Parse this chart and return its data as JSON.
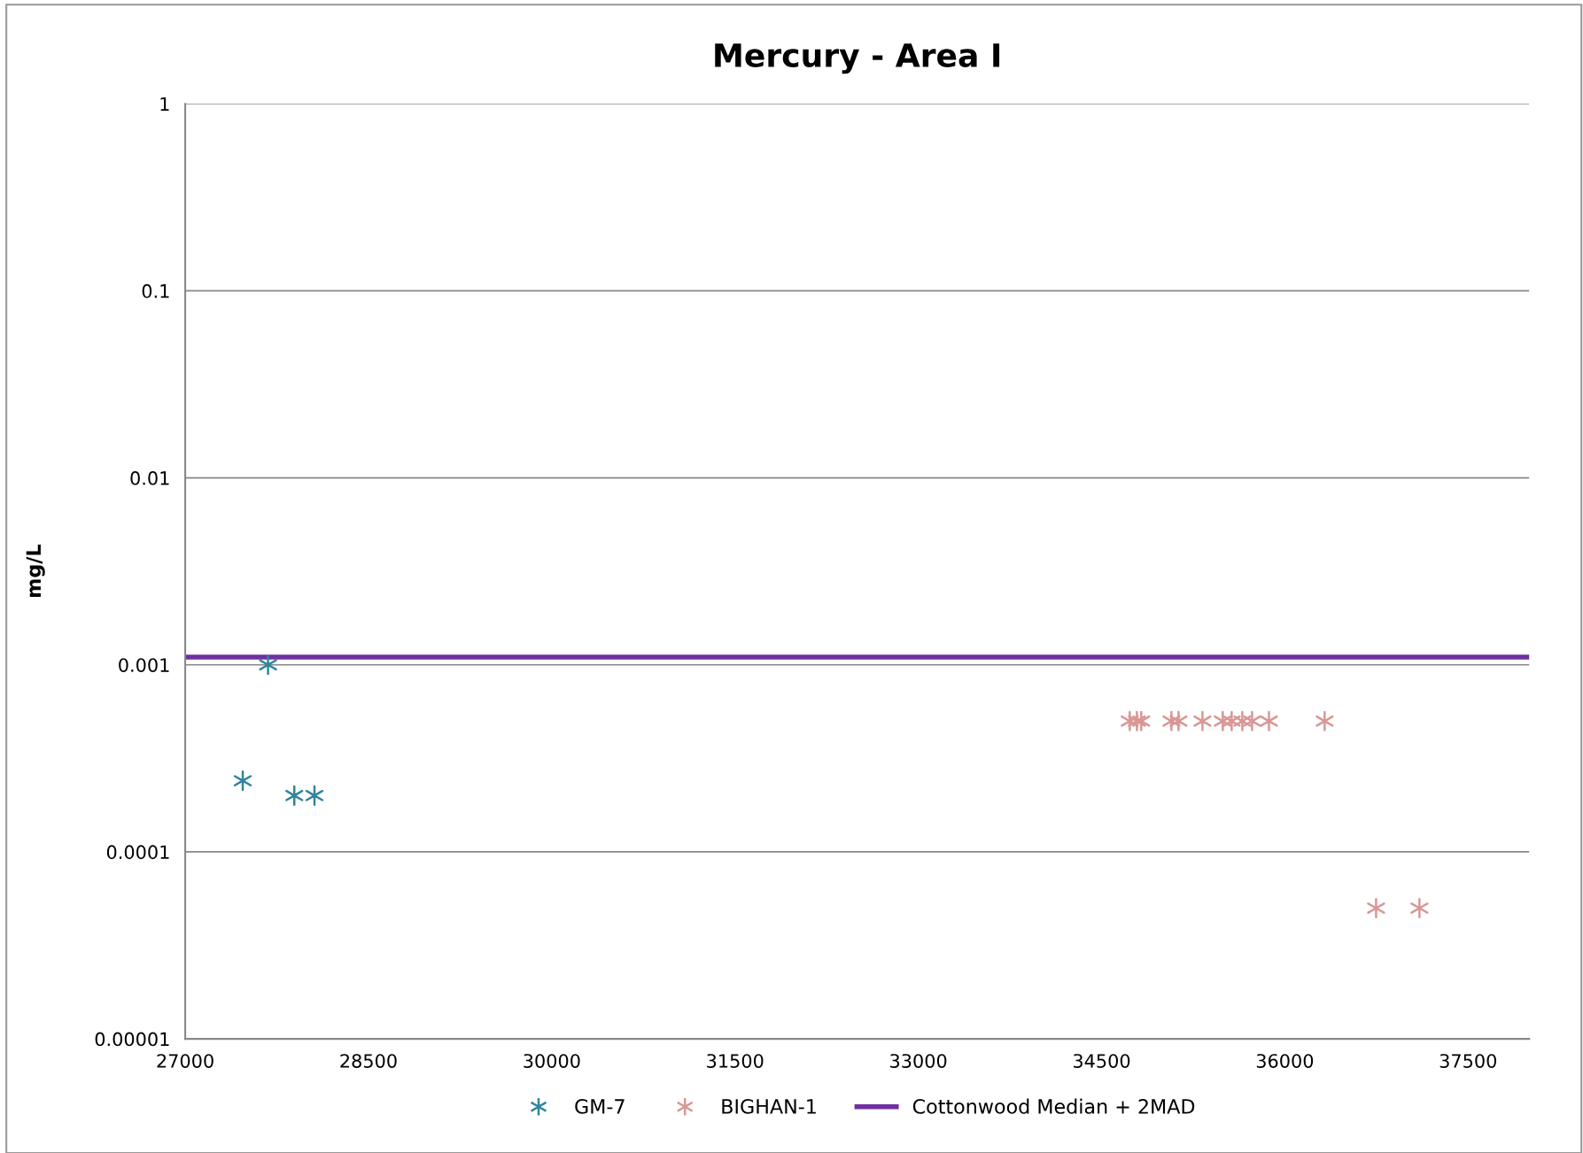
{
  "chart_data": {
    "type": "scatter",
    "title": "Mercury - Area I",
    "ylabel": "mg/L",
    "log": "y",
    "xlim": [
      27000,
      38000
    ],
    "xticks": [
      27000,
      28500,
      30000,
      31500,
      33000,
      34500,
      36000,
      37500
    ],
    "ylim": [
      1e-05,
      1
    ],
    "yticks": [
      {
        "value": 1e-05,
        "label": "0.00001"
      },
      {
        "value": 0.0001,
        "label": "0.0001"
      },
      {
        "value": 0.001,
        "label": "0.001"
      },
      {
        "value": 0.01,
        "label": "0.01"
      },
      {
        "value": 0.1,
        "label": "0.1"
      },
      {
        "value": 1,
        "label": "1"
      }
    ],
    "grid": "y",
    "legend": "bottom",
    "marker": "cross",
    "series": [
      {
        "name": "GM-7",
        "color": "#31859c",
        "x": [
          27471,
          27678,
          27893,
          28058
        ],
        "values": [
          0.00024,
          0.001,
          0.0002,
          0.0002
        ]
      },
      {
        "name": "BIGHAN-1",
        "color": "#d99795",
        "x": [
          34731,
          34789,
          34825,
          35072,
          35130,
          35326,
          35492,
          35565,
          35652,
          35732,
          35870,
          36326,
          36747,
          37102
        ],
        "values": [
          0.0005,
          0.0005,
          0.0005,
          0.0005,
          0.0005,
          0.0005,
          0.0005,
          0.0005,
          0.0005,
          0.0005,
          0.0005,
          0.0005,
          5e-05,
          5e-05
        ]
      }
    ],
    "ref_lines": [
      {
        "axis": "y",
        "value": 0.0011,
        "label": "Cottonwood Median + 2MAD",
        "color": "#7030a0"
      }
    ]
  }
}
